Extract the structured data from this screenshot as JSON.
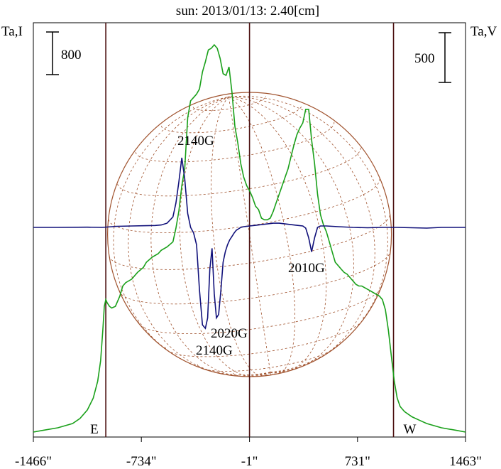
{
  "chart_data": {
    "type": "line",
    "title": "sun: 2013/01/13: 2.40[cm]",
    "left_axis_label": "Ta,I",
    "right_axis_label": "Ta,V",
    "left_scale_bar_label": "800",
    "right_scale_bar_label": "500",
    "x_ticks": [
      "-1466\"",
      "-734\"",
      "-1\"",
      "731\"",
      "1463\""
    ],
    "x_tick_values": [
      -1466,
      -734,
      -1,
      731,
      1463
    ],
    "xlim": [
      -1466,
      1463
    ],
    "grid": false,
    "limb_markers": [
      {
        "label": "E",
        "x": -975
      },
      {
        "label": "W",
        "x": 975
      }
    ],
    "disk_center_x": -1,
    "colors": {
      "intensity": "#1aa01a",
      "polarization": "#10107a",
      "solar_disk": "#a0522d",
      "limb_lines": "#4a0f0f",
      "text": "#000000",
      "title": "#10107a"
    },
    "annotations": [
      "2140G",
      "2010G",
      "2020G",
      "2140G"
    ],
    "series": [
      {
        "values_relative": true,
        "x": [
          -1466,
          -1400,
          -1300,
          -1200,
          -1150,
          -1100,
          -1060,
          -1030,
          -1010,
          -995,
          -985,
          -975,
          -965,
          -950,
          -935,
          -910,
          -880,
          -860,
          -840,
          -800,
          -760,
          -720,
          -700,
          -660,
          -620,
          -600,
          -560,
          -520,
          -500,
          -480,
          -460,
          -440,
          -420,
          -400,
          -380,
          -360,
          -340,
          -320,
          -300,
          -280,
          -260,
          -240,
          -220,
          -200,
          -180,
          -160,
          -140,
          -120,
          -100,
          -80,
          -60,
          -40,
          -20,
          0,
          20,
          40,
          60,
          80,
          100,
          120,
          140,
          160,
          180,
          200,
          220,
          240,
          260,
          280,
          300,
          320,
          340,
          360,
          380,
          400,
          420,
          440,
          460,
          480,
          500,
          520,
          540,
          560,
          580,
          600,
          620,
          640,
          660,
          680,
          700,
          720,
          740,
          760,
          800,
          840,
          880,
          900,
          920,
          940,
          960,
          980,
          1000,
          1020,
          1050,
          1100,
          1150,
          1200,
          1300,
          1400,
          1463
        ],
        "values": [
          0.0,
          0.01,
          0.025,
          0.05,
          0.08,
          0.13,
          0.2,
          0.3,
          0.42,
          0.6,
          0.74,
          0.78,
          0.76,
          0.74,
          0.73,
          0.74,
          0.8,
          0.86,
          0.88,
          0.9,
          0.94,
          0.97,
          1.0,
          1.03,
          1.05,
          1.07,
          1.09,
          1.12,
          1.2,
          1.3,
          1.45,
          1.55,
          1.85,
          1.95,
          1.97,
          1.99,
          2.02,
          2.12,
          2.18,
          2.25,
          2.26,
          2.28,
          2.26,
          2.2,
          2.11,
          2.1,
          2.15,
          2.0,
          1.8,
          1.7,
          1.58,
          1.5,
          1.45,
          1.42,
          1.38,
          1.33,
          1.31,
          1.26,
          1.25,
          1.25,
          1.26,
          1.3,
          1.35,
          1.4,
          1.45,
          1.5,
          1.55,
          1.62,
          1.69,
          1.75,
          1.79,
          1.82,
          1.9,
          1.9,
          1.72,
          1.58,
          1.4,
          1.28,
          1.22,
          1.18,
          1.12,
          1.06,
          1.0,
          0.98,
          0.96,
          0.94,
          0.93,
          0.91,
          0.89,
          0.87,
          0.86,
          0.86,
          0.84,
          0.82,
          0.8,
          0.78,
          0.72,
          0.6,
          0.45,
          0.3,
          0.2,
          0.15,
          0.12,
          0.09,
          0.07,
          0.05,
          0.025,
          0.01,
          0.0
        ]
      },
      {
        "values_relative": true,
        "x": [
          -1466,
          -1300,
          -1100,
          -1000,
          -900,
          -800,
          -700,
          -640,
          -600,
          -560,
          -520,
          -500,
          -480,
          -460,
          -440,
          -420,
          -400,
          -380,
          -360,
          -340,
          -320,
          -300,
          -285,
          -270,
          -255,
          -240,
          -225,
          -210,
          -195,
          -180,
          -165,
          -150,
          -135,
          -120,
          -105,
          -90,
          -75,
          -60,
          -40,
          -20,
          0,
          40,
          80,
          120,
          160,
          200,
          240,
          280,
          320,
          360,
          380,
          400,
          420,
          440,
          460,
          480,
          520,
          600,
          700,
          800,
          900,
          1000,
          1100,
          1200,
          1300,
          1400,
          1463
        ],
        "values": [
          0.0,
          0.0,
          0.003,
          0.0,
          0.015,
          0.02,
          0.025,
          0.028,
          0.035,
          0.06,
          0.15,
          0.35,
          0.65,
          1.0,
          0.7,
          0.2,
          0.0,
          -0.08,
          -0.25,
          -0.9,
          -1.4,
          -1.45,
          -1.3,
          -0.6,
          -0.3,
          -0.95,
          -1.3,
          -1.25,
          -0.9,
          -0.5,
          -0.35,
          -0.25,
          -0.18,
          -0.13,
          -0.08,
          -0.04,
          -0.02,
          0.0,
          0.01,
          0.015,
          0.02,
          0.03,
          0.04,
          0.05,
          0.06,
          0.06,
          0.05,
          0.04,
          0.03,
          0.02,
          -0.01,
          -0.15,
          -0.35,
          -0.15,
          0.0,
          0.02,
          0.02,
          0.01,
          0.0,
          -0.005,
          0.0,
          0.0,
          -0.005,
          -0.01,
          0.0,
          0.0,
          0.0
        ]
      }
    ]
  }
}
